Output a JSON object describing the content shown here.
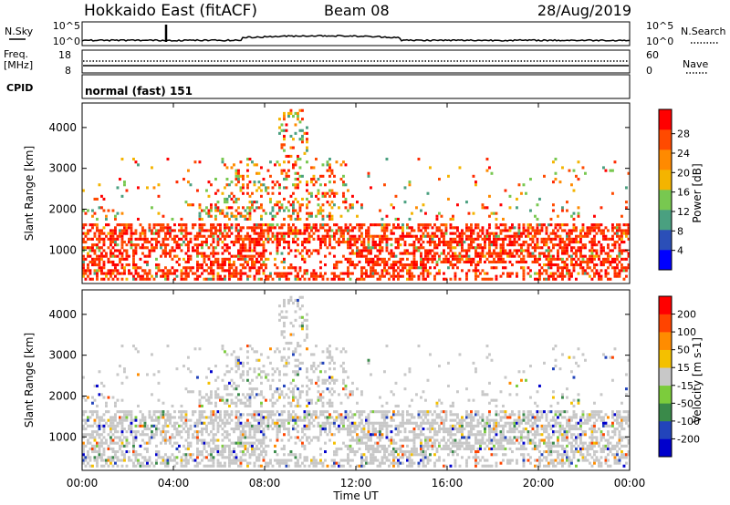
{
  "header": {
    "station": "Hokkaido East (fitACF)",
    "beam": "Beam 08",
    "date": "28/Aug/2019"
  },
  "noise_panel": {
    "left_label": "N.Sky",
    "right_label": "N.Search",
    "ticks": [
      "10^5",
      "10^0"
    ]
  },
  "freq_panel": {
    "left_label_top": "Freq.",
    "left_label_bottom": "[MHz]",
    "left_ticks": [
      "18",
      "8"
    ],
    "right_label": "Nave",
    "right_ticks": [
      "60",
      "0"
    ]
  },
  "cpid_panel": {
    "label": "CPID",
    "value": "normal (fast) 151"
  },
  "chart_data": [
    {
      "type": "heatmap",
      "quantity": "power",
      "ylabel": "Slant Range [km]",
      "ylim": [
        180,
        4600
      ],
      "yticks": [
        "1000",
        "2000",
        "3000",
        "4000"
      ],
      "xlim": [
        0,
        24
      ],
      "colorbar": {
        "label": "Power [dB]",
        "range": [
          0,
          33
        ],
        "ticks": [
          "4",
          "8",
          "12",
          "16",
          "20",
          "24",
          "28"
        ],
        "colors": [
          "#0000ff",
          "#2b4fb8",
          "#4aa080",
          "#78c850",
          "#f4b400",
          "#ff8a00",
          "#ff4a00",
          "#ff0000"
        ]
      }
    },
    {
      "type": "heatmap",
      "quantity": "velocity",
      "ylabel": "Slant Range [km]",
      "ylim": [
        180,
        4600
      ],
      "yticks": [
        "1000",
        "2000",
        "3000",
        "4000"
      ],
      "xlim": [
        0,
        24
      ],
      "xticks": [
        "00:00",
        "04:00",
        "08:00",
        "12:00",
        "16:00",
        "20:00",
        "00:00"
      ],
      "xlabel": "Time UT",
      "colorbar": {
        "label": "Velocity [m s-1]",
        "range": [
          -250,
          250
        ],
        "ticks": [
          "200",
          "100",
          "50",
          "15",
          "-15",
          "-50",
          "-100",
          "-200"
        ],
        "colors": [
          "#0000cc",
          "#2244bb",
          "#3a8a4a",
          "#7ccc3c",
          "#c8c8c8",
          "#f4c000",
          "#ff8c00",
          "#ff4400",
          "#ff0000"
        ]
      }
    }
  ]
}
